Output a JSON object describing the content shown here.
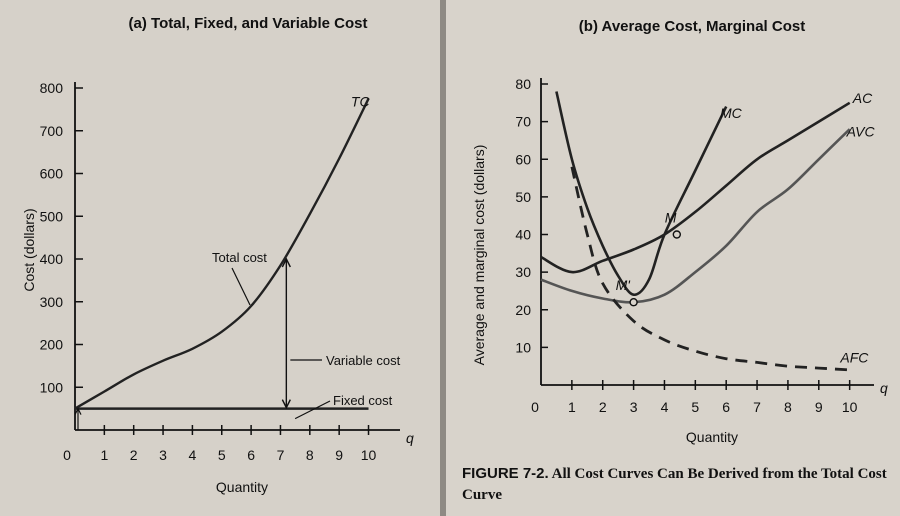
{
  "chart_data": [
    {
      "type": "line",
      "title": "(a) Total, Fixed, and Variable Cost",
      "xlabel": "Quantity",
      "ylabel": "Cost (dollars)",
      "x_axis_symbol": "q",
      "xlim": [
        0,
        11
      ],
      "ylim": [
        0,
        800
      ],
      "x_ticks": [
        0,
        1,
        2,
        3,
        4,
        5,
        6,
        7,
        8,
        9,
        10
      ],
      "y_ticks": [
        100,
        200,
        300,
        400,
        500,
        600,
        700,
        800
      ],
      "series": [
        {
          "name": "TC",
          "x": [
            0,
            1,
            2,
            3,
            4,
            5,
            6,
            7,
            8,
            9,
            10
          ],
          "values": [
            50,
            90,
            130,
            162,
            190,
            230,
            290,
            385,
            505,
            635,
            775
          ],
          "color": "#222222"
        },
        {
          "name": "Fixed cost",
          "x": [
            0,
            10
          ],
          "values": [
            50,
            50
          ],
          "color": "#222222"
        }
      ],
      "annotations": {
        "total_cost": "Total cost",
        "variable_cost": "Variable cost",
        "fixed_cost": "Fixed cost"
      }
    },
    {
      "type": "line",
      "title": "(b) Average Cost, Marginal Cost",
      "xlabel": "Quantity",
      "ylabel": "Average and marginal cost (dollars)",
      "x_axis_symbol": "q",
      "xlim": [
        0,
        10.5
      ],
      "ylim": [
        0,
        80
      ],
      "x_ticks": [
        0,
        1,
        2,
        3,
        4,
        5,
        6,
        7,
        8,
        9,
        10
      ],
      "y_ticks": [
        10,
        20,
        30,
        40,
        50,
        60,
        70,
        80
      ],
      "series": [
        {
          "name": "MC",
          "x": [
            0.5,
            1,
            1.5,
            2,
            2.5,
            3,
            3.5,
            4,
            5,
            6
          ],
          "values": [
            78,
            60,
            47,
            37,
            29,
            24,
            28,
            40,
            57,
            74
          ],
          "color": "#222222",
          "style": "solid"
        },
        {
          "name": "AC",
          "x": [
            0,
            1,
            2,
            3,
            4,
            5,
            6,
            7,
            8,
            9,
            10
          ],
          "values": [
            34,
            30,
            33,
            36,
            40,
            46,
            53,
            60,
            65,
            70,
            75
          ],
          "color": "#222222",
          "style": "solid"
        },
        {
          "name": "AVC",
          "x": [
            0,
            1,
            2,
            3,
            4,
            5,
            6,
            7,
            8,
            9,
            10
          ],
          "values": [
            28,
            25,
            23,
            22,
            24,
            30,
            37,
            46,
            52,
            60,
            68
          ],
          "color": "#555555",
          "style": "solid"
        },
        {
          "name": "AFC",
          "x": [
            1,
            1.5,
            2,
            3,
            4,
            5,
            6,
            7,
            8,
            9,
            10
          ],
          "values": [
            58,
            40,
            27,
            17,
            12,
            9,
            7,
            6,
            5,
            4.5,
            4
          ],
          "color": "#222222",
          "style": "dashed"
        }
      ],
      "points": [
        {
          "label": "M",
          "x": 4.4,
          "y": 40
        },
        {
          "label": "M'",
          "x": 3.0,
          "y": 22
        }
      ]
    }
  ],
  "caption": {
    "label": "FIGURE 7-2.",
    "text": "All Cost Curves Can Be Derived from the Total Cost Curve"
  }
}
